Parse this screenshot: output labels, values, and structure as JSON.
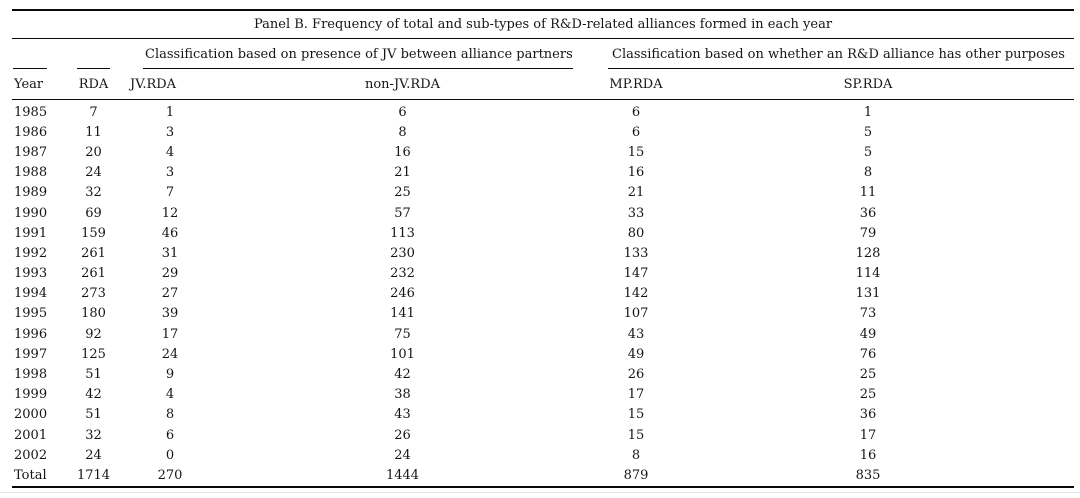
{
  "panel": {
    "title": "Panel B. Frequency of total and sub-types of R&D-related alliances formed in each year"
  },
  "table": {
    "group_headers": {
      "jv": "Classification based on presence of JV between alliance partners",
      "purpose": "Classification based on whether an R&D alliance has other purposes"
    },
    "columns": {
      "year": "Year",
      "rda": "RDA",
      "jv_rda": "JV.RDA",
      "non_jv_rda": "non-JV.RDA",
      "mp_rda": "MP.RDA",
      "sp_rda": "SP.RDA"
    },
    "rows": [
      [
        "1985",
        "7",
        "1",
        "6",
        "6",
        "1"
      ],
      [
        "1986",
        "11",
        "3",
        "8",
        "6",
        "5"
      ],
      [
        "1987",
        "20",
        "4",
        "16",
        "15",
        "5"
      ],
      [
        "1988",
        "24",
        "3",
        "21",
        "16",
        "8"
      ],
      [
        "1989",
        "32",
        "7",
        "25",
        "21",
        "11"
      ],
      [
        "1990",
        "69",
        "12",
        "57",
        "33",
        "36"
      ],
      [
        "1991",
        "159",
        "46",
        "113",
        "80",
        "79"
      ],
      [
        "1992",
        "261",
        "31",
        "230",
        "133",
        "128"
      ],
      [
        "1993",
        "261",
        "29",
        "232",
        "147",
        "114"
      ],
      [
        "1994",
        "273",
        "27",
        "246",
        "142",
        "131"
      ],
      [
        "1995",
        "180",
        "39",
        "141",
        "107",
        "73"
      ],
      [
        "1996",
        "92",
        "17",
        "75",
        "43",
        "49"
      ],
      [
        "1997",
        "125",
        "24",
        "101",
        "49",
        "76"
      ],
      [
        "1998",
        "51",
        "9",
        "42",
        "26",
        "25"
      ],
      [
        "1999",
        "42",
        "4",
        "38",
        "17",
        "25"
      ],
      [
        "2000",
        "51",
        "8",
        "43",
        "15",
        "36"
      ],
      [
        "2001",
        "32",
        "6",
        "26",
        "15",
        "17"
      ],
      [
        "2002",
        "24",
        "0",
        "24",
        "8",
        "16"
      ]
    ],
    "total": [
      "Total",
      "1714",
      "270",
      "1444",
      "879",
      "835"
    ]
  }
}
